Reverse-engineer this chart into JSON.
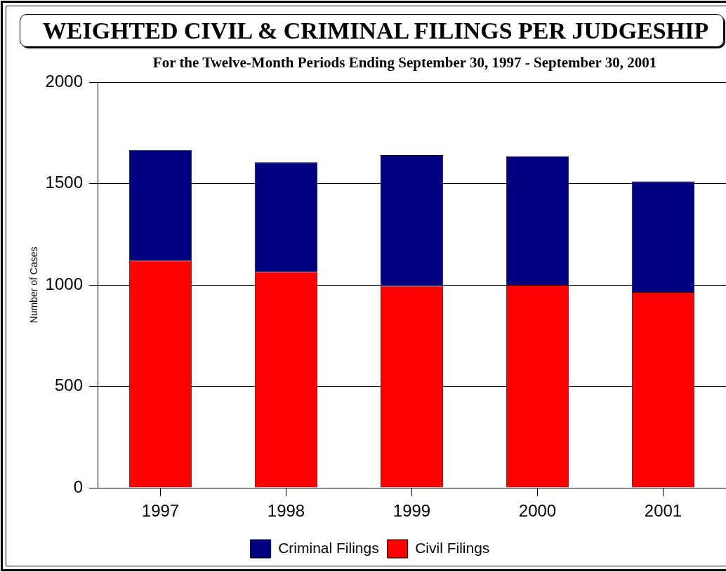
{
  "chart_data": {
    "type": "bar",
    "title": "WEIGHTED CIVIL & CRIMINAL FILINGS PER JUDGESHIP",
    "subtitle": "For the Twelve-Month Periods Ending September 30, 1997 - September 30, 2001",
    "ylabel": "Number of Cases",
    "categories": [
      "1997",
      "1998",
      "1999",
      "2000",
      "2001"
    ],
    "series": [
      {
        "name": "Civil Filings",
        "color": "#ff0000",
        "values": [
          1120,
          1065,
          995,
          1000,
          965
        ]
      },
      {
        "name": "Criminal Filings",
        "color": "#000080",
        "values": [
          545,
          540,
          645,
          635,
          545
        ]
      }
    ],
    "stacked": true,
    "ylim": [
      0,
      2000
    ],
    "yticks": [
      0,
      500,
      1000,
      1500,
      2000
    ],
    "grid": "y",
    "legend": "bottom"
  }
}
